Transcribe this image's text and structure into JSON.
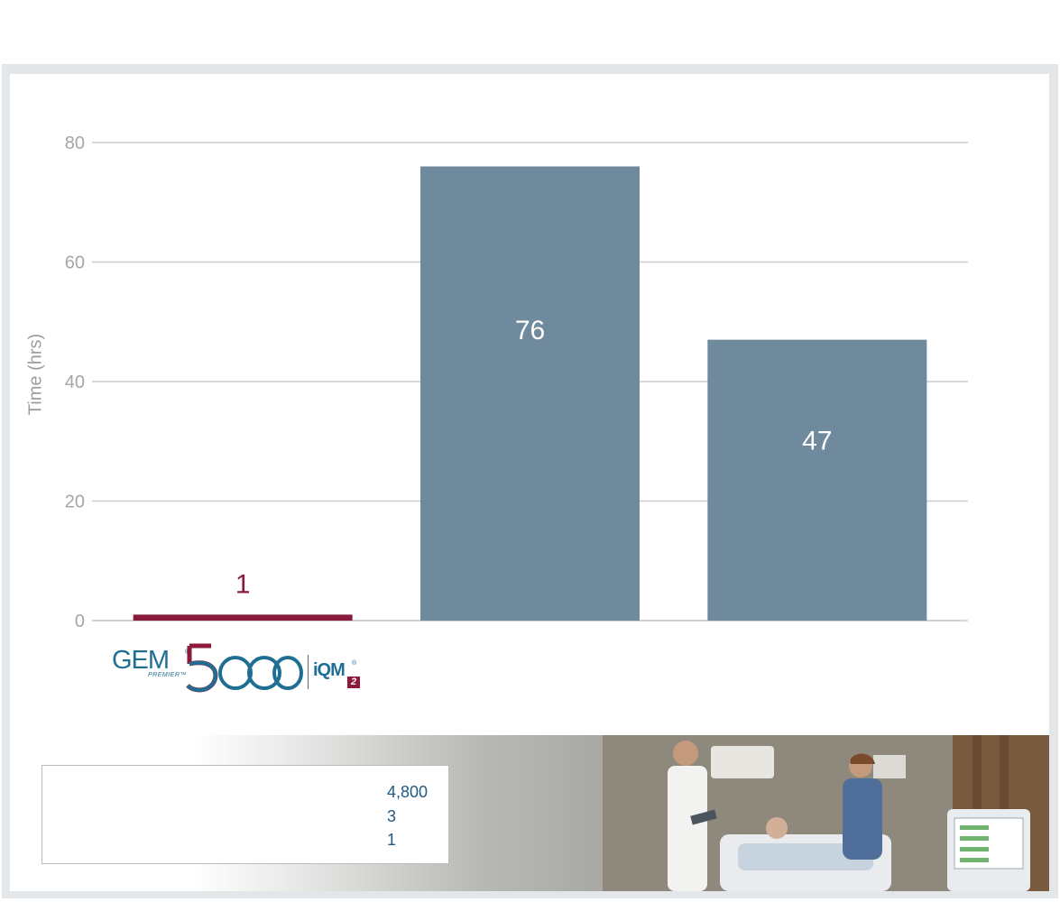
{
  "chart_data": {
    "type": "bar",
    "categories": [
      "",
      "",
      ""
    ],
    "values": [
      1,
      76,
      47
    ],
    "data_labels": [
      "1",
      "76",
      "47"
    ],
    "colors": [
      "#8a1a3c",
      "#6f8a9c",
      "#6f8a9c"
    ],
    "title": "",
    "xlabel": "",
    "ylabel": "Time (hrs)",
    "ylim": [
      0,
      80
    ],
    "yticks": [
      0,
      20,
      40,
      60,
      80
    ],
    "grid": true,
    "label_colors": [
      "#8a1a3c",
      "#ffffff",
      "#ffffff"
    ]
  },
  "logo": {
    "brand": "GEM",
    "registered": "®",
    "premier": "PREMIER™",
    "model": "5000",
    "iqm": "iQM",
    "iqm_registered": "®",
    "iqm_version": "2"
  },
  "info_box": {
    "values": [
      "4,800",
      "3",
      "1"
    ]
  },
  "colors": {
    "accent_red": "#8a1a3c",
    "bar_gray": "#6f8a9c",
    "brand_blue": "#1f6e93"
  },
  "photo": {
    "icons": [
      "doctor-figure",
      "nurse-figure",
      "patient-bed",
      "analyzer-monitor"
    ]
  }
}
